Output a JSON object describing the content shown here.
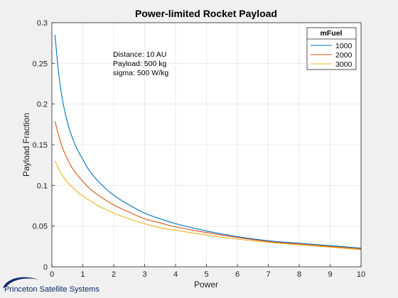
{
  "chart_data": {
    "type": "line",
    "title": "Power-limited Rocket Payload",
    "xlabel": "Power",
    "ylabel": "Payload Fraction",
    "xlim": [
      0,
      10
    ],
    "ylim": [
      0,
      0.3
    ],
    "xticks": [
      0,
      1,
      2,
      3,
      4,
      5,
      6,
      7,
      8,
      9,
      10
    ],
    "yticks": [
      0,
      0.05,
      0.1,
      0.15,
      0.2,
      0.25,
      0.3
    ],
    "grid": true,
    "legend": {
      "title": "mFuel",
      "placement": "top-right"
    },
    "x": [
      0.1,
      0.2,
      0.3,
      0.4,
      0.5,
      0.6,
      0.8,
      1.0,
      1.2,
      1.5,
      2.0,
      2.5,
      3.0,
      3.5,
      4.0,
      5.0,
      6.0,
      7.0,
      8.0,
      9.0,
      10.0
    ],
    "series": [
      {
        "name": "1000",
        "color": "#0072bd",
        "values": [
          0.285,
          0.245,
          0.215,
          0.194,
          0.178,
          0.165,
          0.146,
          0.132,
          0.119,
          0.105,
          0.088,
          0.076,
          0.066,
          0.059,
          0.053,
          0.044,
          0.037,
          0.032,
          0.029,
          0.026,
          0.023
        ]
      },
      {
        "name": "2000",
        "color": "#d95319",
        "values": [
          0.179,
          0.164,
          0.151,
          0.141,
          0.133,
          0.125,
          0.114,
          0.105,
          0.097,
          0.088,
          0.076,
          0.067,
          0.059,
          0.054,
          0.049,
          0.042,
          0.036,
          0.031,
          0.028,
          0.025,
          0.022
        ]
      },
      {
        "name": "3000",
        "color": "#edb120",
        "values": [
          0.13,
          0.122,
          0.115,
          0.109,
          0.104,
          0.1,
          0.093,
          0.087,
          0.082,
          0.075,
          0.066,
          0.059,
          0.053,
          0.048,
          0.045,
          0.039,
          0.034,
          0.03,
          0.027,
          0.024,
          0.021
        ]
      }
    ],
    "annotations": [
      "Distance: 10 AU",
      "Payload: 500 kg",
      "sigma: 500 W/kg"
    ]
  },
  "logo": {
    "text": "Princeton Satellite Systems",
    "color": "#0d2a6b"
  }
}
